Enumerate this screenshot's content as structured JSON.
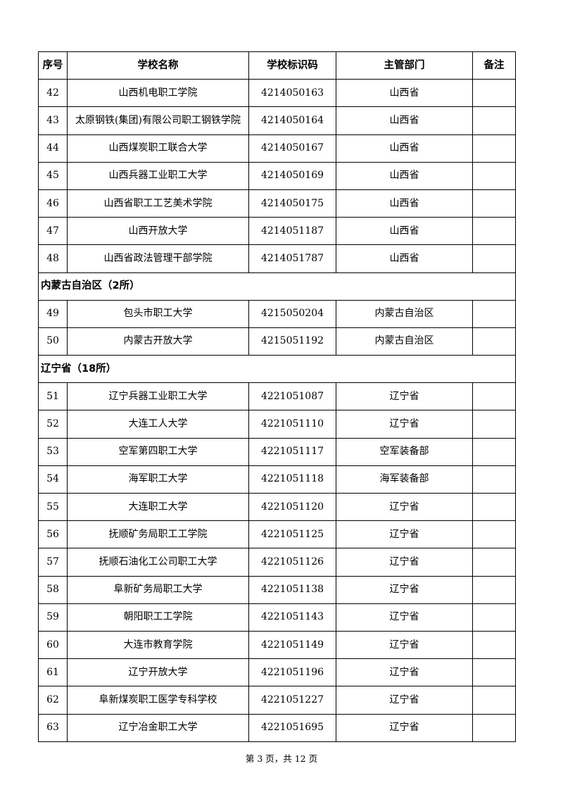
{
  "headers": [
    "序号",
    "学校名称",
    "学校标识码",
    "主管部门",
    "备注"
  ],
  "rows": [
    {
      "type": "row",
      "no": "42",
      "name": "山西机电职工学院",
      "code": "4214050163",
      "dept": "山西省",
      "note": ""
    },
    {
      "type": "row",
      "no": "43",
      "name": "太原钢铁(集团)有限公司职工钢铁学院",
      "code": "4214050164",
      "dept": "山西省",
      "note": ""
    },
    {
      "type": "row",
      "no": "44",
      "name": "山西煤炭职工联合大学",
      "code": "4214050167",
      "dept": "山西省",
      "note": ""
    },
    {
      "type": "row",
      "no": "45",
      "name": "山西兵器工业职工大学",
      "code": "4214050169",
      "dept": "山西省",
      "note": ""
    },
    {
      "type": "row",
      "no": "46",
      "name": "山西省职工工艺美术学院",
      "code": "4214050175",
      "dept": "山西省",
      "note": ""
    },
    {
      "type": "row",
      "no": "47",
      "name": "山西开放大学",
      "code": "4214051187",
      "dept": "山西省",
      "note": ""
    },
    {
      "type": "row",
      "no": "48",
      "name": "山西省政法管理干部学院",
      "code": "4214051787",
      "dept": "山西省",
      "note": ""
    },
    {
      "type": "section",
      "label": "内蒙古自治区（2所）"
    },
    {
      "type": "row",
      "no": "49",
      "name": "包头市职工大学",
      "code": "4215050204",
      "dept": "内蒙古自治区",
      "note": ""
    },
    {
      "type": "row",
      "no": "50",
      "name": "内蒙古开放大学",
      "code": "4215051192",
      "dept": "内蒙古自治区",
      "note": ""
    },
    {
      "type": "section",
      "label": "辽宁省（18所）"
    },
    {
      "type": "row",
      "no": "51",
      "name": "辽宁兵器工业职工大学",
      "code": "4221051087",
      "dept": "辽宁省",
      "note": ""
    },
    {
      "type": "row",
      "no": "52",
      "name": "大连工人大学",
      "code": "4221051110",
      "dept": "辽宁省",
      "note": ""
    },
    {
      "type": "row",
      "no": "53",
      "name": "空军第四职工大学",
      "code": "4221051117",
      "dept": "空军装备部",
      "note": ""
    },
    {
      "type": "row",
      "no": "54",
      "name": "海军职工大学",
      "code": "4221051118",
      "dept": "海军装备部",
      "note": ""
    },
    {
      "type": "row",
      "no": "55",
      "name": "大连职工大学",
      "code": "4221051120",
      "dept": "辽宁省",
      "note": ""
    },
    {
      "type": "row",
      "no": "56",
      "name": "抚顺矿务局职工工学院",
      "code": "4221051125",
      "dept": "辽宁省",
      "note": ""
    },
    {
      "type": "row",
      "no": "57",
      "name": "抚顺石油化工公司职工大学",
      "code": "4221051126",
      "dept": "辽宁省",
      "note": ""
    },
    {
      "type": "row",
      "no": "58",
      "name": "阜新矿务局职工大学",
      "code": "4221051138",
      "dept": "辽宁省",
      "note": ""
    },
    {
      "type": "row",
      "no": "59",
      "name": "朝阳职工工学院",
      "code": "4221051143",
      "dept": "辽宁省",
      "note": ""
    },
    {
      "type": "row",
      "no": "60",
      "name": "大连市教育学院",
      "code": "4221051149",
      "dept": "辽宁省",
      "note": ""
    },
    {
      "type": "row",
      "no": "61",
      "name": "辽宁开放大学",
      "code": "4221051196",
      "dept": "辽宁省",
      "note": ""
    },
    {
      "type": "row",
      "no": "62",
      "name": "阜新煤炭职工医学专科学校",
      "code": "4221051227",
      "dept": "辽宁省",
      "note": ""
    },
    {
      "type": "row",
      "no": "63",
      "name": "辽宁冶金职工大学",
      "code": "4221051695",
      "dept": "辽宁省",
      "note": ""
    }
  ],
  "footer": "第 3 页，共 12 页"
}
